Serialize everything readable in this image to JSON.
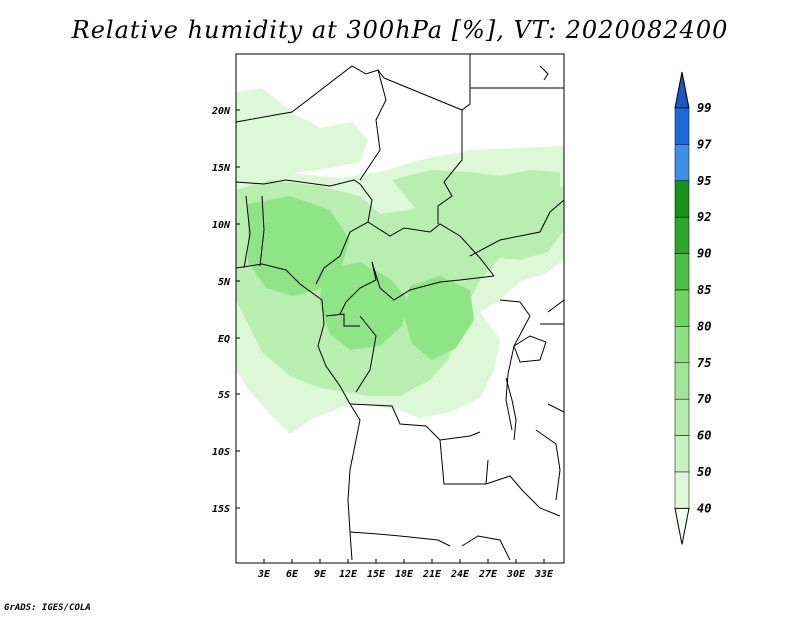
{
  "title": "Relative humidity at 300hPa [%], VT: 2020082400",
  "credit": "GrADS: IGES/COLA",
  "map": {
    "lat_labels": [
      "20N",
      "15N",
      "10N",
      "5N",
      "EQ",
      "5S",
      "10S",
      "15S"
    ],
    "lon_labels": [
      "3E",
      "6E",
      "9E",
      "12E",
      "15E",
      "18E",
      "21E",
      "24E",
      "27E",
      "30E",
      "33E"
    ],
    "fill_colors": {
      "light": "#dcf8d6",
      "mid": "#b8efb0",
      "dark": "#8fe486"
    },
    "coast_color": "#000000"
  },
  "colorbar": {
    "levels": [
      "40",
      "50",
      "60",
      "70",
      "75",
      "80",
      "85",
      "90",
      "92",
      "95",
      "97",
      "99"
    ],
    "colors": [
      "#f0fff0",
      "#dcf8d6",
      "#c8f2c0",
      "#b4ecab",
      "#a0e696",
      "#8ce081",
      "#6fd466",
      "#4cbe46",
      "#2ea52a",
      "#18901a",
      "#3e8ee6",
      "#1c6ad8",
      "#1a55c0"
    ]
  }
}
